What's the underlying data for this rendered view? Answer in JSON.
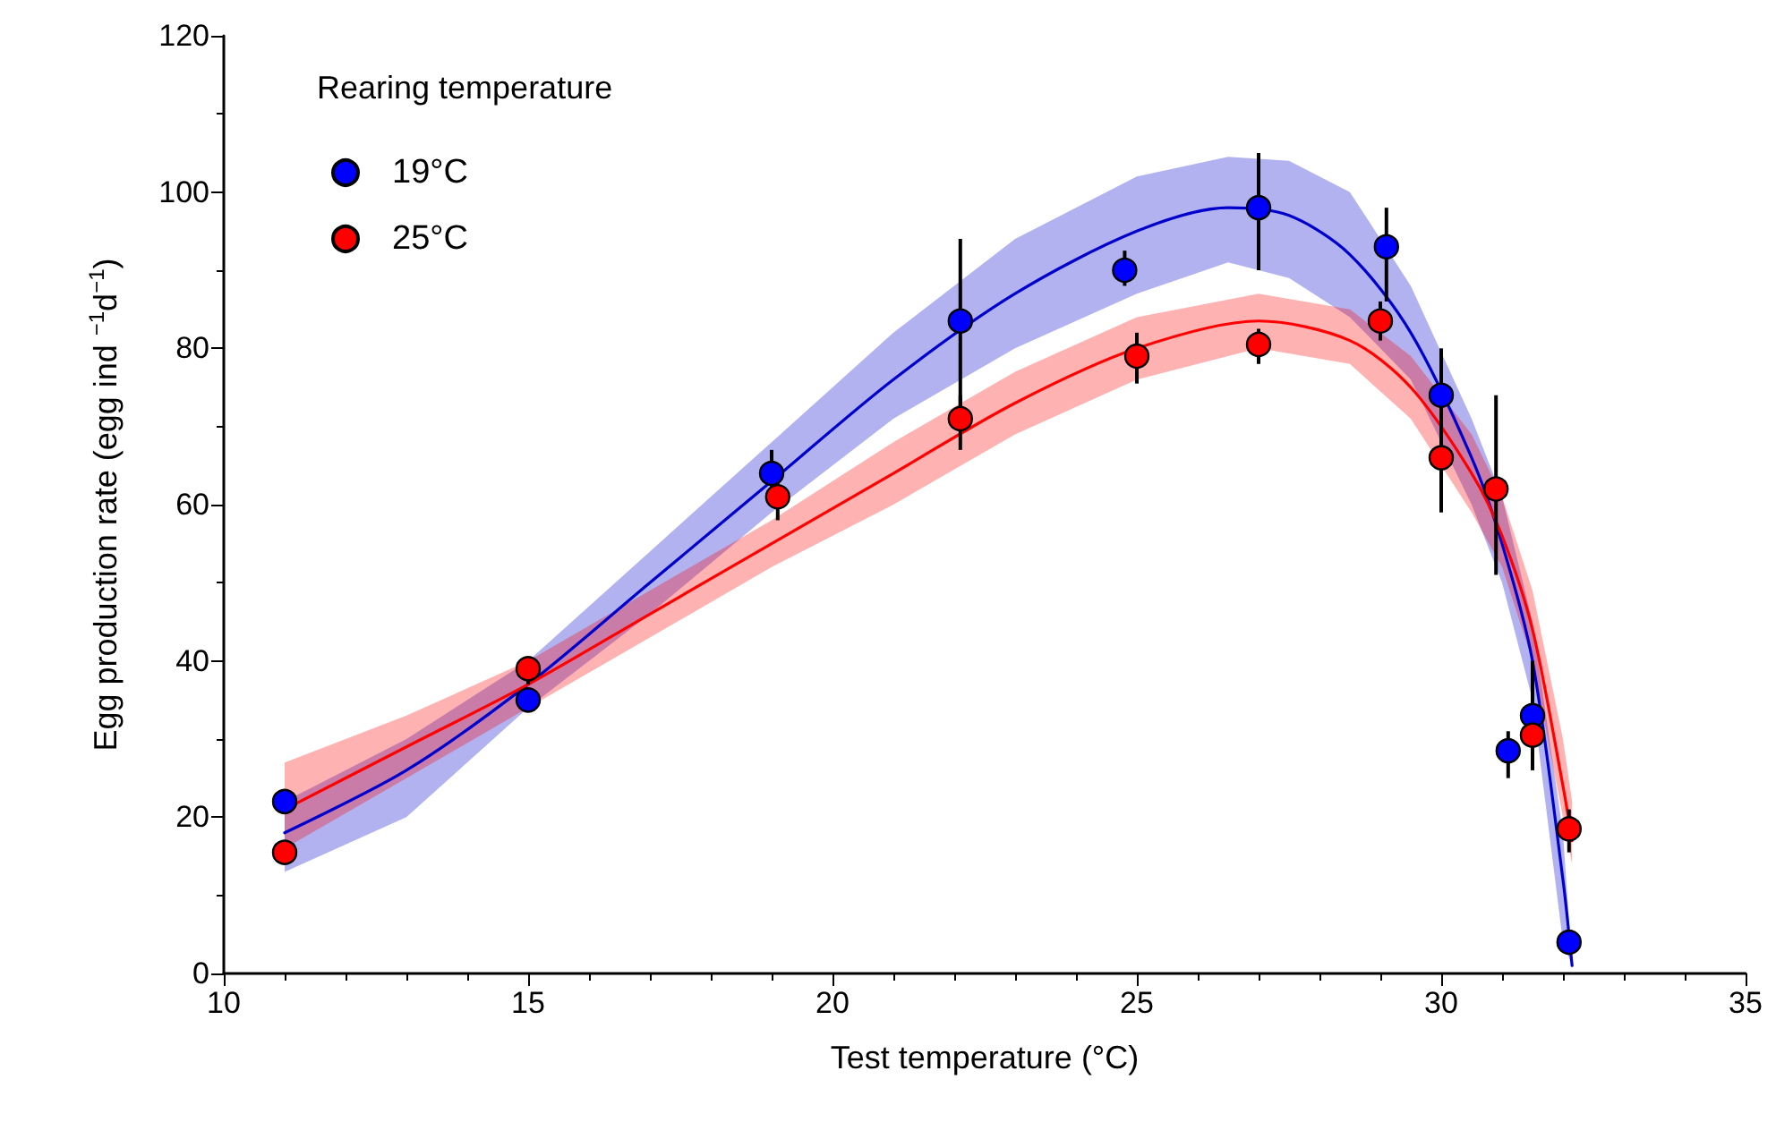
{
  "chart_data": {
    "type": "scatter",
    "xlabel": "Test temperature (°C)",
    "ylabel": "Egg production rate (egg ind $^{−1}$d$^{−1}$)",
    "legend_title": "Rearing temperature",
    "legend": "top left",
    "grid": false,
    "marker": "circle",
    "xlim": [
      10,
      35
    ],
    "xticks": [
      10,
      15,
      20,
      25,
      30,
      35
    ],
    "ylim": [
      0,
      120
    ],
    "yticks": [
      0,
      20,
      40,
      60,
      80,
      100,
      120
    ],
    "series": [
      {
        "type": "line",
        "marker": "none",
        "color": "#0000cc",
        "x": [
          11,
          13,
          15,
          17,
          19,
          21,
          23,
          25,
          26.5,
          27.5,
          28.5,
          29.5,
          30.5,
          31,
          31.5,
          32,
          32.15
        ],
        "values": [
          18,
          26,
          37,
          50,
          63,
          76,
          87,
          95,
          98,
          97,
          92,
          82,
          66,
          55,
          40,
          12,
          1
        ],
        "lower": [
          13,
          20,
          34,
          46,
          59,
          71,
          80,
          87,
          91,
          89,
          84,
          76,
          60,
          50,
          35,
          4,
          1
        ],
        "upper": [
          22,
          30,
          40,
          54,
          68,
          82,
          94,
          102,
          104.5,
          104,
          100,
          88,
          71,
          61,
          45,
          18,
          1
        ]
      },
      {
        "type": "line",
        "marker": "none",
        "color": "#ff0000",
        "x": [
          11,
          13,
          15,
          17,
          19,
          21,
          23,
          25,
          27,
          28.5,
          29.5,
          30.5,
          31,
          31.5,
          32,
          32.15
        ],
        "values": [
          21,
          29,
          37,
          46,
          55,
          64,
          73,
          80,
          83.5,
          81,
          75,
          64,
          56,
          44,
          24,
          17
        ],
        "lower": [
          16,
          25,
          34,
          43,
          52,
          60,
          69,
          76,
          80,
          78,
          71,
          59,
          52,
          40,
          20,
          14
        ],
        "upper": [
          27,
          33,
          40,
          49,
          58,
          68,
          77,
          84,
          87,
          85,
          79,
          69,
          61,
          49,
          30,
          22
        ]
      },
      {
        "name": "19°C",
        "color": "#0000ff",
        "x": [
          11,
          15,
          19,
          22.1,
          24.8,
          27,
          29.1,
          30,
          31.1,
          31.5,
          32.1
        ],
        "values": [
          22,
          35,
          64,
          83.5,
          90,
          98,
          93,
          74,
          28.5,
          33,
          4
        ],
        "errors": [
          null,
          [
            34,
            36
          ],
          [
            60,
            67
          ],
          [
            72,
            94
          ],
          [
            88,
            92.5
          ],
          [
            90,
            105
          ],
          [
            86,
            98
          ],
          [
            60,
            80
          ],
          [
            25,
            31
          ],
          [
            27,
            37
          ],
          null
        ]
      },
      {
        "name": "25°C",
        "color": "#ff0000",
        "x": [
          11,
          15,
          19.1,
          22.1,
          25,
          27,
          29,
          30,
          30.9,
          31.5,
          32.1
        ],
        "values": [
          15.5,
          39,
          61,
          71,
          79,
          80.5,
          83.5,
          66,
          62,
          30.5,
          18.5
        ],
        "errors": [
          null,
          [
            37,
            40.5
          ],
          [
            58,
            64
          ],
          [
            67,
            74
          ],
          [
            75.5,
            82
          ],
          [
            78,
            82.5
          ],
          [
            81,
            86
          ],
          [
            59,
            72
          ],
          [
            51,
            74
          ],
          [
            26,
            40
          ],
          [
            15.5,
            21
          ]
        ]
      }
    ]
  }
}
